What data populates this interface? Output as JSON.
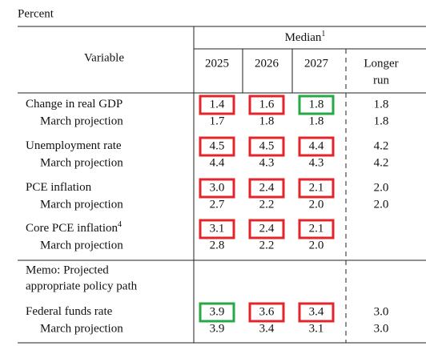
{
  "header": {
    "unit": "Percent",
    "variable": "Variable",
    "median": "Median",
    "median_note": "1",
    "years": [
      "2025",
      "2026",
      "2027"
    ],
    "longer_run": [
      "Longer",
      "run"
    ]
  },
  "groups": [
    {
      "label": "Change in real GDP",
      "note": null,
      "values": [
        "1.4",
        "1.6",
        "1.8",
        "1.8"
      ],
      "highlight": [
        "#e3242b",
        "#e3242b",
        "#27a846",
        null
      ],
      "sub_label": "March projection",
      "sub_values": [
        "1.7",
        "1.8",
        "1.8",
        "1.8"
      ]
    },
    {
      "label": "Unemployment rate",
      "note": null,
      "values": [
        "4.5",
        "4.5",
        "4.4",
        "4.2"
      ],
      "highlight": [
        "#e3242b",
        "#e3242b",
        "#e3242b",
        null
      ],
      "sub_label": "March projection",
      "sub_values": [
        "4.4",
        "4.3",
        "4.3",
        "4.2"
      ]
    },
    {
      "label": "PCE inflation",
      "note": null,
      "values": [
        "3.0",
        "2.4",
        "2.1",
        "2.0"
      ],
      "highlight": [
        "#e3242b",
        "#e3242b",
        "#e3242b",
        null
      ],
      "sub_label": "March projection",
      "sub_values": [
        "2.7",
        "2.2",
        "2.0",
        "2.0"
      ]
    },
    {
      "label": "Core PCE inflation",
      "note": "4",
      "values": [
        "3.1",
        "2.4",
        "2.1",
        null
      ],
      "highlight": [
        "#e3242b",
        "#e3242b",
        "#e3242b",
        null
      ],
      "sub_label": "March projection",
      "sub_values": [
        "2.8",
        "2.2",
        "2.0",
        null
      ]
    }
  ],
  "memo": [
    "Memo: Projected",
    "appropriate policy path"
  ],
  "policy": {
    "label": "Federal funds rate",
    "note": null,
    "values": [
      "3.9",
      "3.6",
      "3.4",
      "3.0"
    ],
    "highlight": [
      "#27a846",
      "#e3242b",
      "#e3242b",
      null
    ],
    "sub_label": "March projection",
    "sub_values": [
      "3.9",
      "3.4",
      "3.1",
      "3.0"
    ]
  }
}
